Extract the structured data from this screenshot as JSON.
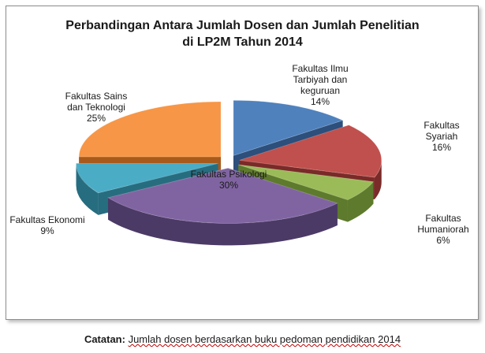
{
  "chart_data": {
    "type": "pie",
    "title_lines": [
      "Perbandingan Antara Jumlah Dosen dan Jumlah Penelitian",
      "di LP2M Tahun 2014"
    ],
    "categories": [
      "Fakultas Ilmu Tarbiyah dan keguruan",
      "Fakultas Syariah",
      "Fakultas Humaniorah",
      "Fakultas Psikologi",
      "Fakultas Ekonomi",
      "Fakultas Sains dan Teknologi"
    ],
    "values": [
      14,
      16,
      6,
      30,
      9,
      25
    ],
    "value_labels": [
      "14%",
      "16%",
      "6%",
      "30%",
      "9%",
      "25%"
    ],
    "legend": "none",
    "three_d": true,
    "exploded": true
  },
  "slices": [
    {
      "name_lines": [
        "Fakultas Ilmu",
        "Tarbiyah dan",
        "keguruan"
      ],
      "pct": "14%",
      "color": "#4f81bd",
      "side": "#2c4f7c"
    },
    {
      "name_lines": [
        "Fakultas",
        "Syariah"
      ],
      "pct": "16%",
      "color": "#c0504d",
      "side": "#7a2a28"
    },
    {
      "name_lines": [
        "Fakultas",
        "Humaniorah"
      ],
      "pct": "6%",
      "color": "#9bbb59",
      "side": "#5e7a2c"
    },
    {
      "name_lines": [
        "Fakultas Psikologi"
      ],
      "pct": "30%",
      "color": "#8064a2",
      "side": "#4b3a66"
    },
    {
      "name_lines": [
        "Fakultas Ekonomi"
      ],
      "pct": "9%",
      "color": "#4bacc6",
      "side": "#276d80"
    },
    {
      "name_lines": [
        "Fakultas Sains",
        "dan Teknologi"
      ],
      "pct": "25%",
      "color": "#f79646",
      "side": "#a85a1c"
    }
  ],
  "note": {
    "label": "Catatan:",
    "text": "Jumlah dosen berdasarkan buku pedoman pendidikan 2014"
  }
}
